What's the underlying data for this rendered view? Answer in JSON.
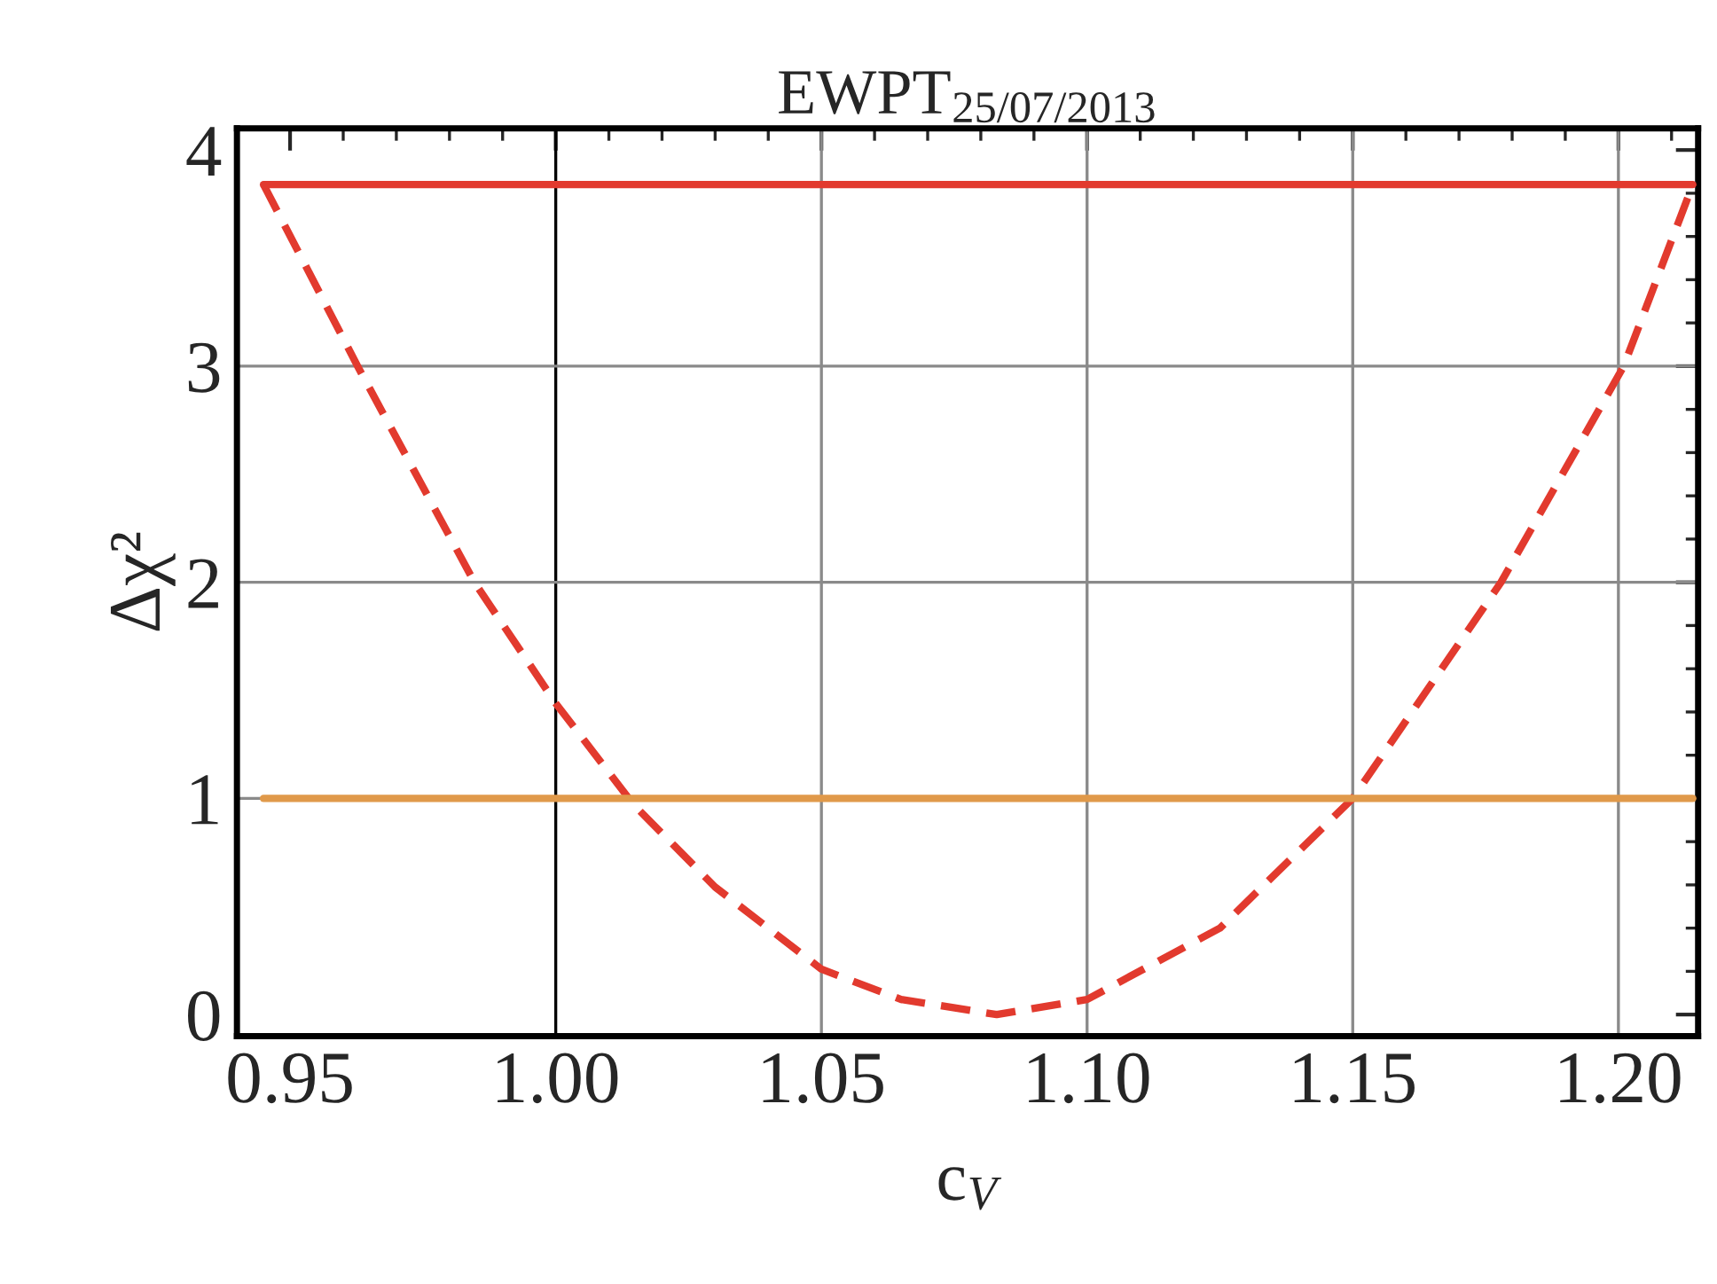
{
  "chart_data": {
    "type": "line",
    "title": "EWPT$_{25/07/2013}$",
    "xlabel": "c$_{V}$",
    "ylabel": "Δχ²",
    "xlim": [
      0.94,
      1.215
    ],
    "ylim": [
      -0.1,
      4.1
    ],
    "xticks": [
      {
        "value": 0.95,
        "label": "0.95"
      },
      {
        "value": 1.0,
        "label": "1.00"
      },
      {
        "value": 1.05,
        "label": "1.05"
      },
      {
        "value": 1.1,
        "label": "1.10"
      },
      {
        "value": 1.15,
        "label": "1.15"
      },
      {
        "value": 1.2,
        "label": "1.20"
      }
    ],
    "yticks": [
      0,
      1,
      2,
      3,
      4
    ],
    "series": [
      {
        "color": "#e23a2e",
        "line_style": "dashed",
        "x": [
          0.945,
          0.9627,
          0.9847,
          1.0,
          1.0147,
          1.03,
          1.05,
          1.065,
          1.083,
          1.1,
          1.125,
          1.15,
          1.1779,
          1.201,
          1.214
        ],
        "values": [
          3.84,
          3.0,
          2.0,
          1.44,
          0.97,
          0.59,
          0.21,
          0.07,
          0.0,
          0.07,
          0.4,
          1.0,
          2.0,
          3.0,
          3.84
        ]
      },
      {
        "color": "#e23a2e",
        "line_style": "solid",
        "x": [
          0.945,
          1.214
        ],
        "values": [
          3.84,
          3.84
        ]
      },
      {
        "color": "#e0994a",
        "line_style": "solid",
        "x": [
          0.945,
          1.214
        ],
        "values": [
          1,
          1
        ]
      }
    ],
    "ref_lines": [
      {
        "axis": "x",
        "value": 1.0,
        "color": "#000000"
      },
      {
        "axis": "x",
        "value": 1.05,
        "color": "#8a8a8a"
      },
      {
        "axis": "x",
        "value": 1.1,
        "color": "#8a8a8a"
      },
      {
        "axis": "x",
        "value": 1.15,
        "color": "#8a8a8a"
      },
      {
        "axis": "x",
        "value": 1.2,
        "color": "#8a8a8a"
      },
      {
        "axis": "y",
        "value": 1,
        "color": "#8a8a8a"
      },
      {
        "axis": "y",
        "value": 2,
        "color": "#8a8a8a"
      },
      {
        "axis": "y",
        "value": 3,
        "color": "#8a8a8a"
      }
    ]
  }
}
